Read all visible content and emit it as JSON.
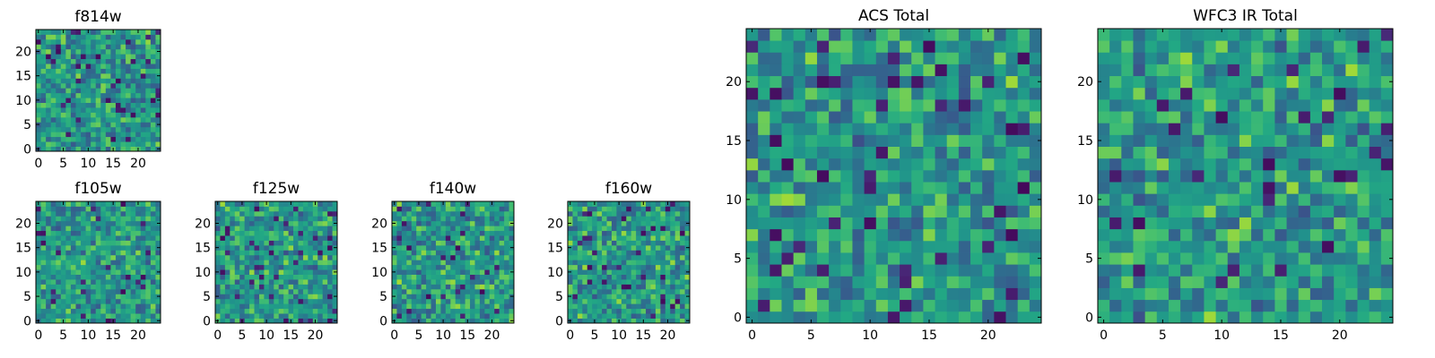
{
  "chart_data": [
    {
      "type": "heatmap",
      "title": "f814w",
      "grid_size": 25,
      "xlim": [
        0,
        24
      ],
      "ylim": [
        0,
        24
      ],
      "xticks": [
        0,
        5,
        10,
        15,
        20
      ],
      "yticks": [
        0,
        5,
        10,
        15,
        20
      ],
      "xtick_labels": [
        "0",
        "5",
        "10",
        "15",
        "20"
      ],
      "ytick_labels": [
        "0",
        "5",
        "10",
        "15",
        "20"
      ],
      "colormap": "viridis"
    },
    {
      "type": "heatmap",
      "title": "f105w",
      "grid_size": 25,
      "xlim": [
        0,
        24
      ],
      "ylim": [
        0,
        24
      ],
      "xticks": [
        0,
        5,
        10,
        15,
        20
      ],
      "yticks": [
        0,
        5,
        10,
        15,
        20
      ],
      "xtick_labels": [
        "0",
        "5",
        "10",
        "15",
        "20"
      ],
      "ytick_labels": [
        "0",
        "5",
        "10",
        "15",
        "20"
      ],
      "colormap": "viridis"
    },
    {
      "type": "heatmap",
      "title": "f125w",
      "grid_size": 25,
      "xlim": [
        0,
        24
      ],
      "ylim": [
        0,
        24
      ],
      "xticks": [
        0,
        5,
        10,
        15,
        20
      ],
      "yticks": [
        0,
        5,
        10,
        15,
        20
      ],
      "xtick_labels": [
        "0",
        "5",
        "10",
        "15",
        "20"
      ],
      "ytick_labels": [
        "0",
        "5",
        "10",
        "15",
        "20"
      ],
      "colormap": "viridis"
    },
    {
      "type": "heatmap",
      "title": "f140w",
      "grid_size": 25,
      "xlim": [
        0,
        24
      ],
      "ylim": [
        0,
        24
      ],
      "xticks": [
        0,
        5,
        10,
        15,
        20
      ],
      "yticks": [
        0,
        5,
        10,
        15,
        20
      ],
      "xtick_labels": [
        "0",
        "5",
        "10",
        "15",
        "20"
      ],
      "ytick_labels": [
        "0",
        "5",
        "10",
        "15",
        "20"
      ],
      "colormap": "viridis"
    },
    {
      "type": "heatmap",
      "title": "f160w",
      "grid_size": 25,
      "xlim": [
        0,
        24
      ],
      "ylim": [
        0,
        24
      ],
      "xticks": [
        0,
        5,
        10,
        15,
        20
      ],
      "yticks": [
        0,
        5,
        10,
        15,
        20
      ],
      "xtick_labels": [
        "0",
        "5",
        "10",
        "15",
        "20"
      ],
      "ytick_labels": [
        "0",
        "5",
        "10",
        "15",
        "20"
      ],
      "colormap": "viridis"
    },
    {
      "type": "heatmap",
      "title": "ACS Total",
      "grid_size": 25,
      "xlim": [
        0,
        24
      ],
      "ylim": [
        0,
        24
      ],
      "xticks": [
        0,
        5,
        10,
        15,
        20
      ],
      "yticks": [
        0,
        5,
        10,
        15,
        20
      ],
      "xtick_labels": [
        "0",
        "5",
        "10",
        "15",
        "20"
      ],
      "ytick_labels": [
        "0",
        "5",
        "10",
        "15",
        "20"
      ],
      "colormap": "viridis"
    },
    {
      "type": "heatmap",
      "title": "WFC3 IR Total",
      "grid_size": 25,
      "xlim": [
        0,
        24
      ],
      "ylim": [
        0,
        24
      ],
      "xticks": [
        0,
        5,
        10,
        15,
        20
      ],
      "yticks": [
        0,
        5,
        10,
        15,
        20
      ],
      "xtick_labels": [
        "0",
        "5",
        "10",
        "15",
        "20"
      ],
      "ytick_labels": [
        "0",
        "5",
        "10",
        "15",
        "20"
      ],
      "colormap": "viridis"
    }
  ],
  "colors": {
    "background": "#ffffff",
    "axis": "#000000",
    "viridis_low": "#440154",
    "viridis_mid": "#21918c",
    "viridis_high": "#fde725"
  }
}
